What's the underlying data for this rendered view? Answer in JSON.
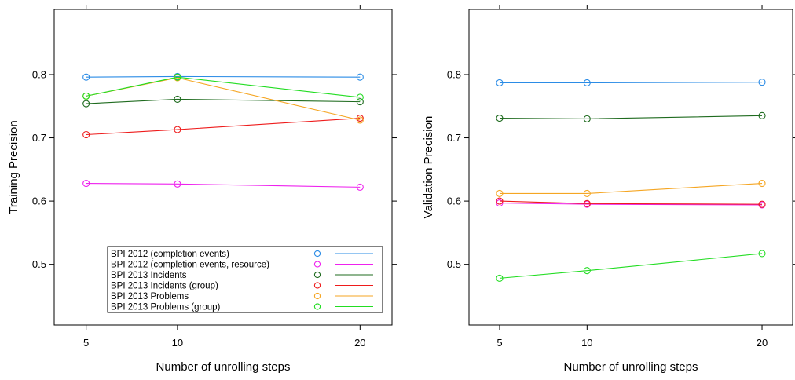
{
  "chart_data": [
    {
      "type": "line",
      "panel": "left",
      "xlabel": "Number of unrolling steps",
      "ylabel": "Training Precision",
      "x": [
        5,
        10,
        20
      ],
      "xticks": [
        "5",
        "10",
        "20"
      ],
      "yticks": [
        "0.5",
        "0.6",
        "0.7",
        "0.8"
      ],
      "xlim": [
        3.25,
        21.75
      ],
      "ylim": [
        0.404,
        0.903
      ],
      "legend_position": "bottom-right",
      "series": [
        {
          "name": "BPI 2012 (completion events)",
          "color": "#2b8ce6",
          "values": [
            0.796,
            0.797,
            0.796
          ]
        },
        {
          "name": "BPI 2012 (completion events, resource)",
          "color": "#ee22ee",
          "values": [
            0.628,
            0.627,
            0.622
          ]
        },
        {
          "name": "BPI 2013 Incidents",
          "color": "#1f6b1f",
          "values": [
            0.754,
            0.761,
            0.757
          ]
        },
        {
          "name": "BPI 2013 Incidents (group)",
          "color": "#ee1c1c",
          "values": [
            0.705,
            0.713,
            0.731
          ]
        },
        {
          "name": "BPI 2013 Problems",
          "color": "#f5a623",
          "values": [
            0.766,
            0.795,
            0.728
          ]
        },
        {
          "name": "BPI 2013 Problems (group)",
          "color": "#22dd22",
          "values": [
            0.766,
            0.796,
            0.764
          ]
        }
      ]
    },
    {
      "type": "line",
      "panel": "right",
      "xlabel": "Number of unrolling steps",
      "ylabel": "Validation Precision",
      "x": [
        5,
        10,
        20
      ],
      "xticks": [
        "5",
        "10",
        "20"
      ],
      "yticks": [
        "0.5",
        "0.6",
        "0.7",
        "0.8"
      ],
      "xlim": [
        3.25,
        21.75
      ],
      "ylim": [
        0.404,
        0.903
      ],
      "series": [
        {
          "name": "BPI 2012 (completion events)",
          "color": "#2b8ce6",
          "values": [
            0.787,
            0.787,
            0.788
          ]
        },
        {
          "name": "BPI 2012 (completion events, resource)",
          "color": "#ee22ee",
          "values": [
            0.597,
            0.595,
            0.594
          ]
        },
        {
          "name": "BPI 2013 Incidents",
          "color": "#1f6b1f",
          "values": [
            0.731,
            0.73,
            0.735
          ]
        },
        {
          "name": "BPI 2013 Incidents (group)",
          "color": "#ee1c1c",
          "values": [
            0.6,
            0.596,
            0.595
          ]
        },
        {
          "name": "BPI 2013 Problems",
          "color": "#f5a623",
          "values": [
            0.612,
            0.612,
            0.628
          ]
        },
        {
          "name": "BPI 2013 Problems (group)",
          "color": "#22dd22",
          "values": [
            0.478,
            0.49,
            0.517
          ]
        }
      ]
    }
  ]
}
